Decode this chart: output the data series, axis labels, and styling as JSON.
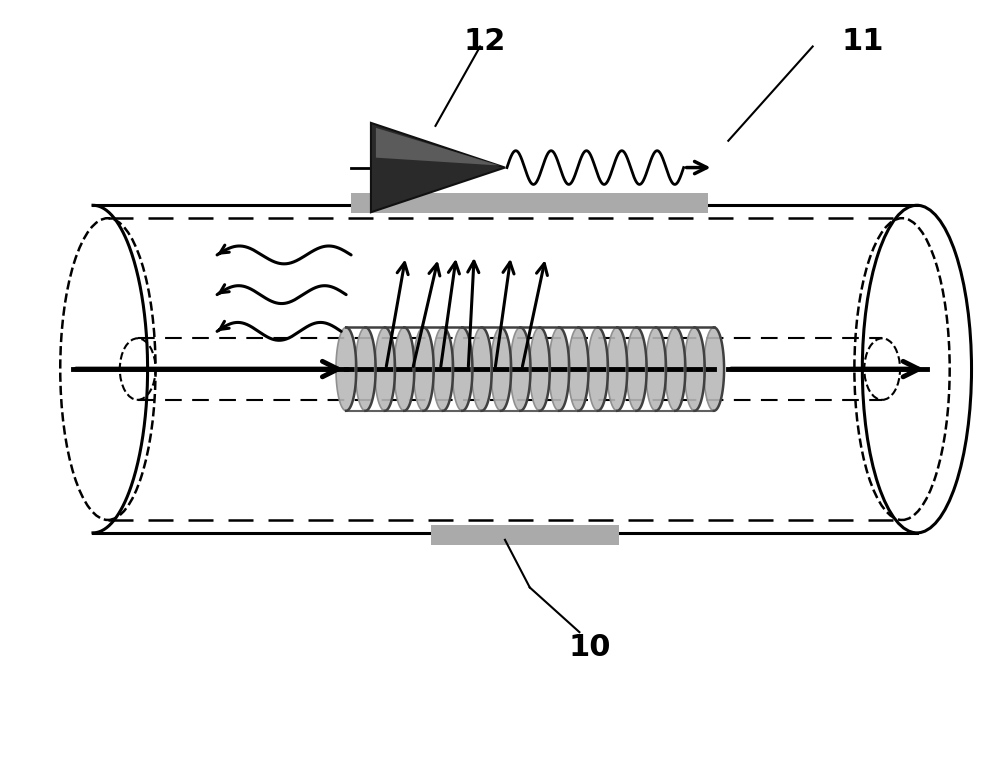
{
  "bg_color": "#ffffff",
  "label_12": "12",
  "label_11": "11",
  "label_10": "10",
  "fig_width": 10.0,
  "fig_height": 7.59,
  "black": "#000000",
  "dark_gray": "#333333",
  "mid_gray": "#808080",
  "light_gray": "#c8c8c8",
  "coil_gray": "#b8b8b8",
  "band_gray": "#aaaaaa"
}
